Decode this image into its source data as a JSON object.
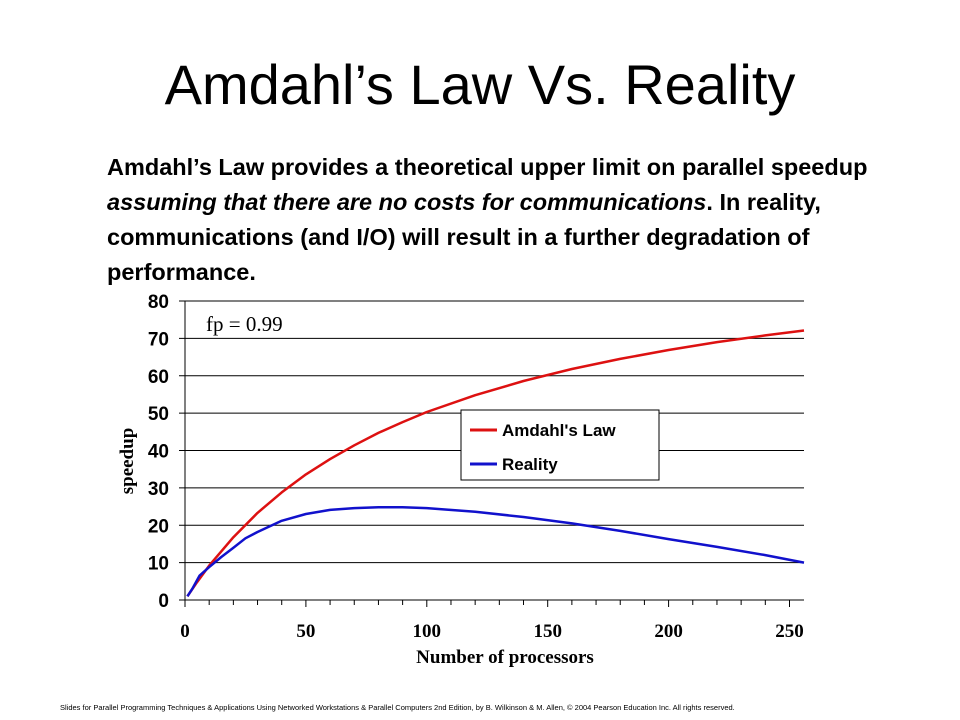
{
  "slide": {
    "title": "Amdahl’s Law Vs. Reality",
    "paragraph": {
      "part1": "Amdahl’s Law provides a theoretical upper limit on parallel speedup ",
      "part2_italic": "assuming that there are no costs for communications",
      "part3": ". In reality, communications (and I/O) will result in a further degradation of performance."
    },
    "footer": "Slides for Parallel Programming Techniques & Applications Using Networked Workstations & Parallel Computers 2nd Edition, by B. Wilkinson & M. Allen, © 2004 Pearson Education Inc. All rights reserved."
  },
  "chart_data": {
    "type": "line",
    "annotation": "fp = 0.99",
    "xlabel": "Number of processors",
    "ylabel": "speedup",
    "xlim": [
      0,
      256
    ],
    "ylim": [
      0,
      80
    ],
    "x_ticks": [
      0,
      50,
      100,
      150,
      200,
      250
    ],
    "y_ticks": [
      0,
      10,
      20,
      30,
      40,
      50,
      60,
      70,
      80
    ],
    "grid": "horizontal",
    "legend_position": "right",
    "series": [
      {
        "name": "Amdahl's Law",
        "color": "#dd1111",
        "x": [
          1,
          5,
          10,
          20,
          30,
          40,
          50,
          60,
          70,
          80,
          90,
          100,
          120,
          140,
          160,
          180,
          200,
          220,
          240,
          256
        ],
        "y": [
          1,
          4.8,
          9.2,
          16.8,
          23.3,
          28.8,
          33.6,
          37.7,
          41.4,
          44.7,
          47.6,
          50.3,
          54.8,
          58.6,
          61.8,
          64.5,
          66.9,
          69.0,
          70.8,
          72.1
        ]
      },
      {
        "name": "Reality",
        "color": "#1111cc",
        "x": [
          1,
          3,
          6,
          10,
          15,
          20,
          25,
          30,
          40,
          50,
          60,
          70,
          80,
          90,
          100,
          120,
          140,
          160,
          180,
          200,
          220,
          240,
          256
        ],
        "y": [
          1,
          3,
          6.5,
          8.8,
          11.5,
          14,
          16.5,
          18.2,
          21.2,
          23,
          24.1,
          24.6,
          24.8,
          24.8,
          24.6,
          23.6,
          22.2,
          20.5,
          18.5,
          16.3,
          14.2,
          12,
          10
        ]
      }
    ]
  }
}
